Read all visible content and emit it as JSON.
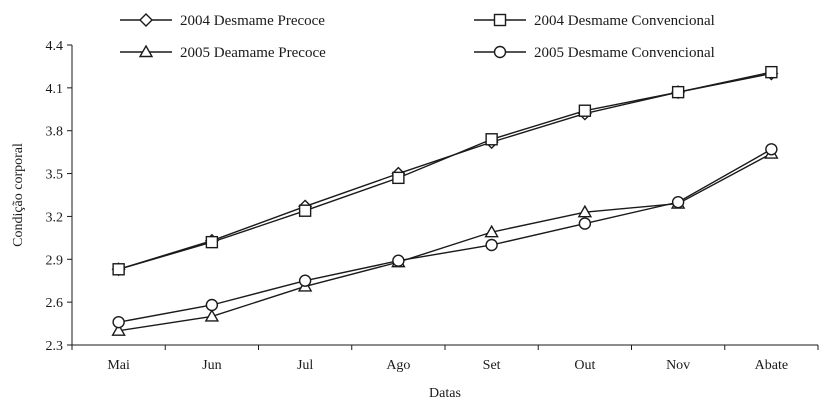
{
  "chart_data": {
    "type": "line",
    "categories": [
      "Mai",
      "Jun",
      "Jul",
      "Ago",
      "Set",
      "Out",
      "Nov",
      "Abate"
    ],
    "xlabel": "Datas",
    "ylabel": "Condição corporal",
    "ylim": [
      2.3,
      4.4
    ],
    "yticks": [
      "2.3",
      "2.6",
      "2.9",
      "3.2",
      "3.5",
      "3.8",
      "4.1",
      "4.4"
    ],
    "grid": false,
    "legend_position": "top",
    "series": [
      {
        "name": "2004 Desmame Precoce",
        "marker": "diamond",
        "values": [
          2.83,
          3.03,
          3.27,
          3.5,
          3.72,
          3.92,
          4.07,
          4.2
        ]
      },
      {
        "name": "2004 Desmame Convencional",
        "marker": "square",
        "values": [
          2.83,
          3.02,
          3.24,
          3.47,
          3.74,
          3.94,
          4.07,
          4.21
        ]
      },
      {
        "name": "2005 Deamame Precoce",
        "marker": "triangle",
        "values": [
          2.4,
          2.5,
          2.71,
          2.88,
          3.09,
          3.23,
          3.29,
          3.64
        ]
      },
      {
        "name": "2005 Desmame Convencional",
        "marker": "circle",
        "values": [
          2.46,
          2.58,
          2.75,
          2.89,
          3.0,
          3.15,
          3.3,
          3.67
        ]
      }
    ]
  }
}
